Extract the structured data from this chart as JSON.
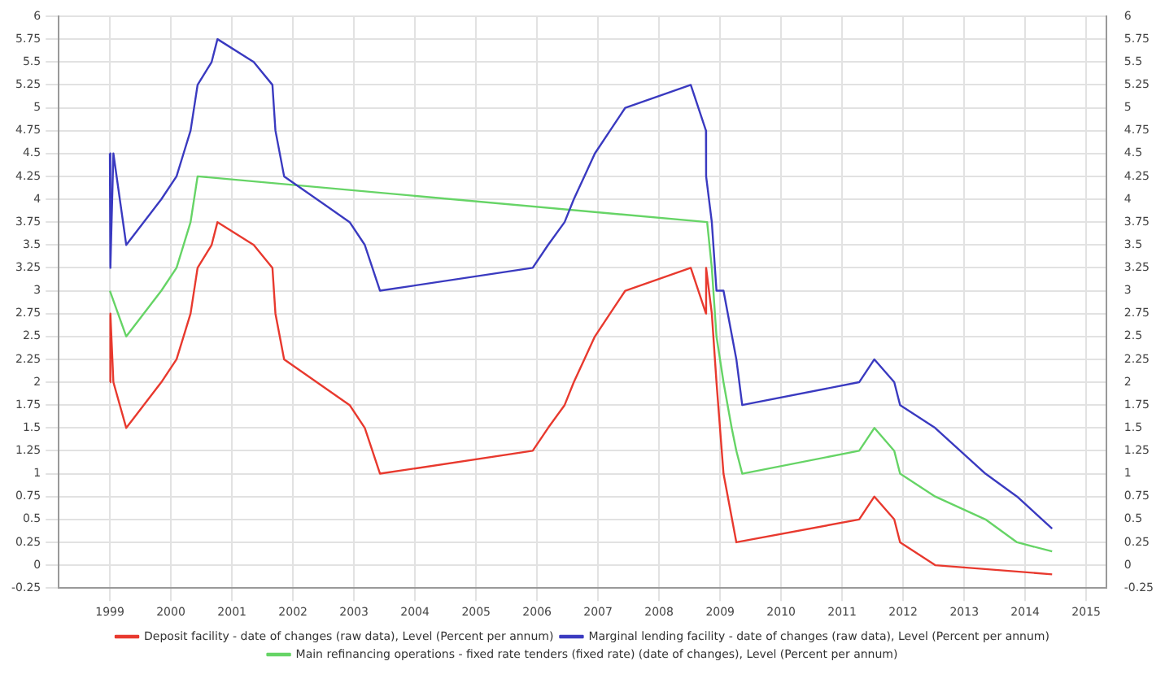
{
  "chart_data": {
    "type": "line",
    "series": [
      {
        "name": "Deposit facility - date of changes (raw data), Level (Percent per annum)",
        "color": "#e8392e",
        "x": [
          "1999-01-01",
          "1999-01-04",
          "1999-01-22",
          "1999-04-09",
          "1999-11-05",
          "2000-02-04",
          "2000-03-17",
          "2000-04-28",
          "2000-06-09",
          "2000-09-01",
          "2000-10-06",
          "2001-05-11",
          "2001-08-31",
          "2001-09-18",
          "2001-11-09",
          "2002-12-06",
          "2003-03-07",
          "2003-06-06",
          "2005-12-06",
          "2006-03-08",
          "2006-06-15",
          "2006-08-09",
          "2006-10-11",
          "2006-12-13",
          "2007-03-14",
          "2007-06-13",
          "2008-07-09",
          "2008-10-08",
          "2008-10-09",
          "2008-11-12",
          "2008-12-10",
          "2009-01-21",
          "2009-04-08",
          "2011-04-13",
          "2011-07-13",
          "2011-11-09",
          "2011-12-14",
          "2012-07-11",
          "2014-06-11"
        ],
        "values": [
          2,
          2.75,
          2,
          1.5,
          2,
          2.25,
          2.5,
          2.75,
          3.25,
          3.5,
          3.75,
          3.5,
          3.25,
          2.75,
          2.25,
          1.75,
          1.5,
          1,
          1.25,
          1.5,
          1.75,
          2,
          2.25,
          2.5,
          2.75,
          3,
          3.25,
          2.75,
          3.25,
          2.75,
          2,
          1,
          0.25,
          0.5,
          0.75,
          0.5,
          0.25,
          0,
          -0.1
        ]
      },
      {
        "name": "Marginal lending facility - date of changes (raw data), Level (Percent per annum)",
        "color": "#3a3ac0",
        "x": [
          "1999-01-01",
          "1999-01-04",
          "1999-01-22",
          "1999-04-09",
          "1999-11-05",
          "2000-02-04",
          "2000-03-17",
          "2000-04-28",
          "2000-06-09",
          "2000-09-01",
          "2000-10-06",
          "2001-05-11",
          "2001-08-31",
          "2001-09-18",
          "2001-11-09",
          "2002-12-06",
          "2003-03-07",
          "2003-06-06",
          "2005-12-06",
          "2006-03-08",
          "2006-06-15",
          "2006-08-09",
          "2006-10-11",
          "2006-12-13",
          "2007-03-14",
          "2007-06-13",
          "2008-07-09",
          "2008-10-08",
          "2008-10-09",
          "2008-11-12",
          "2008-12-10",
          "2009-01-21",
          "2009-04-08",
          "2009-05-13",
          "2011-04-13",
          "2011-07-13",
          "2011-11-09",
          "2011-12-14",
          "2012-07-11",
          "2013-05-08",
          "2013-11-13",
          "2014-06-11"
        ],
        "values": [
          4.5,
          3.25,
          4.5,
          3.5,
          4,
          4.25,
          4.5,
          4.75,
          5.25,
          5.5,
          5.75,
          5.5,
          5.25,
          4.75,
          4.25,
          3.75,
          3.5,
          3,
          3.25,
          3.5,
          3.75,
          4,
          4.25,
          4.5,
          4.75,
          5,
          5.25,
          4.75,
          4.25,
          3.75,
          3,
          3,
          2.25,
          1.75,
          2,
          2.25,
          2,
          1.75,
          1.5,
          1,
          0.75,
          0.4
        ]
      },
      {
        "name": "Main refinancing operations - fixed rate tenders (fixed rate) (date of changes), Level (Percent per annum)",
        "color": "#66d466",
        "x": [
          "1999-01-01",
          "1999-04-09",
          "1999-11-05",
          "2000-02-04",
          "2000-03-17",
          "2000-04-28",
          "2000-06-09",
          "2008-10-15",
          "2008-11-12",
          "2008-12-10",
          "2009-01-21",
          "2009-03-11",
          "2009-04-08",
          "2009-05-13",
          "2011-04-13",
          "2011-07-13",
          "2011-11-09",
          "2011-12-14",
          "2012-07-11",
          "2013-05-08",
          "2013-11-13",
          "2014-06-11"
        ],
        "values": [
          3,
          2.5,
          3,
          3.25,
          3.5,
          3.75,
          4.25,
          3.75,
          3.25,
          2.5,
          2,
          1.5,
          1.25,
          1,
          1.25,
          1.5,
          1.25,
          1,
          0.75,
          0.5,
          0.25,
          0.15
        ]
      }
    ],
    "xlim": [
      "1998-03",
      "2015-05"
    ],
    "xticks": [
      "1999",
      "2000",
      "2001",
      "2002",
      "2003",
      "2004",
      "2005",
      "2006",
      "2007",
      "2008",
      "2009",
      "2010",
      "2011",
      "2012",
      "2013",
      "2014",
      "2015"
    ],
    "ylim": [
      -0.25,
      6
    ],
    "yticks": [
      -0.25,
      0,
      0.25,
      0.5,
      0.75,
      1,
      1.25,
      1.5,
      1.75,
      2,
      2.25,
      2.5,
      2.75,
      3,
      3.25,
      3.5,
      3.75,
      4,
      4.25,
      4.5,
      4.75,
      5,
      5.25,
      5.5,
      5.75,
      6
    ],
    "y2lim": [
      -0.25,
      6
    ],
    "y2ticks": [
      -0.25,
      0,
      0.25,
      0.5,
      0.75,
      1,
      1.25,
      1.5,
      1.75,
      2,
      2.25,
      2.5,
      2.75,
      3,
      3.25,
      3.5,
      3.75,
      4,
      4.25,
      4.5,
      4.75,
      5,
      5.25,
      5.5,
      5.75,
      6
    ],
    "grid": true,
    "legend": "bottom",
    "marker": "none",
    "line_style": "solid"
  }
}
